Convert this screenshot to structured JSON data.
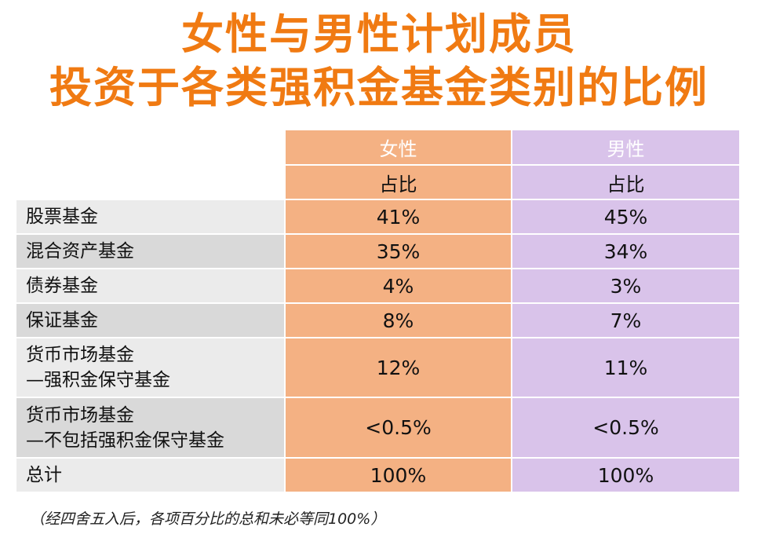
{
  "title": {
    "line1": "女性与男性计划成员",
    "line2": "投资于各类强积金基金类别的比例"
  },
  "table": {
    "header_female": "女性",
    "header_male": "男性",
    "sub_female": "占比",
    "sub_male": "占比",
    "rows": [
      {
        "label1": "股票基金",
        "label2": "",
        "female": "41%",
        "male": "45%"
      },
      {
        "label1": "混合资产基金",
        "label2": "",
        "female": "35%",
        "male": "34%"
      },
      {
        "label1": "债券基金",
        "label2": "",
        "female": "4%",
        "male": "3%"
      },
      {
        "label1": "保证基金",
        "label2": "",
        "female": "8%",
        "male": "7%"
      },
      {
        "label1": "货币市场基金",
        "label2": "—强积金保守基金",
        "female": "12%",
        "male": "11%"
      },
      {
        "label1": "货币市场基金",
        "label2": "—不包括强积金保守基金",
        "female": "<0.5%",
        "male": "<0.5%"
      },
      {
        "label1": "总计",
        "label2": "",
        "female": "100%",
        "male": "100%"
      }
    ]
  },
  "note": "（经四舍五入后，各项百分比的总和未必等同100%）",
  "colors": {
    "title": "#f07a12",
    "female": "#f4b183",
    "male": "#d9c3ea",
    "label_light": "#ebebeb",
    "label_dark": "#d9d9d9"
  }
}
